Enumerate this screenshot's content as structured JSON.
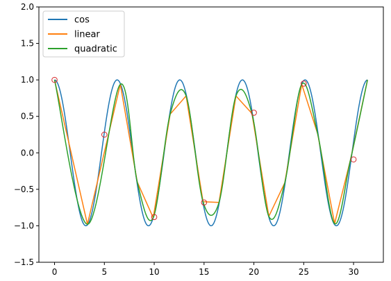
{
  "chart_data": {
    "type": "line",
    "title": "",
    "xlabel": "",
    "ylabel": "",
    "xlim": [
      -1.57,
      32.99
    ],
    "ylim": [
      -1.5,
      2.0
    ],
    "x_ticks": [
      0,
      5,
      10,
      15,
      20,
      25,
      30
    ],
    "x_tick_labels": [
      "0",
      "5",
      "10",
      "15",
      "20",
      "25",
      "30"
    ],
    "y_ticks": [
      -1.5,
      -1.0,
      -0.5,
      0.0,
      0.5,
      1.0,
      1.5,
      2.0
    ],
    "y_tick_labels": [
      "−1.5",
      "−1.0",
      "−0.5",
      "0.0",
      "0.5",
      "1.0",
      "1.5",
      "2.0"
    ],
    "grid": false,
    "legend_position": "top-left",
    "legend": [
      "cos",
      "linear",
      "quadratic"
    ],
    "series": [
      {
        "name": "cos",
        "kind": "function",
        "function": "cos",
        "x_range": [
          0,
          31.4
        ],
        "color": "#1f77b4"
      },
      {
        "name": "linear",
        "kind": "polyline",
        "color": "#ff7f0e",
        "x": [
          0,
          3.3,
          6.6,
          8.3,
          9.9,
          11.6,
          13.2,
          14.9,
          16.5,
          18.2,
          19.8,
          21.5,
          23.1,
          24.8,
          26.4,
          28.1,
          29.7,
          31.4
        ],
        "y": [
          1.0,
          -0.98,
          0.94,
          -0.4,
          -0.89,
          0.53,
          0.78,
          -0.67,
          -0.68,
          0.78,
          0.54,
          -0.87,
          -0.41,
          0.94,
          0.26,
          -0.97,
          -0.09,
          1.0
        ]
      },
      {
        "name": "quadratic",
        "kind": "smooth",
        "color": "#2ca02c",
        "x": [
          0,
          3.3,
          6.6,
          8.3,
          9.9,
          11.6,
          13.2,
          14.9,
          16.5,
          18.2,
          19.8,
          21.5,
          23.1,
          24.8,
          26.4,
          28.1,
          29.7,
          31.4
        ],
        "y": [
          1.0,
          -0.98,
          0.94,
          -0.4,
          -0.89,
          0.53,
          0.78,
          -0.67,
          -0.68,
          0.78,
          0.54,
          -0.87,
          -0.41,
          0.94,
          0.26,
          -0.97,
          -0.09,
          1.0
        ]
      }
    ],
    "markers": {
      "style": "open-circle",
      "color": "#d62728",
      "x": [
        0,
        5,
        10,
        15,
        20,
        25,
        30
      ],
      "y": [
        1.0,
        0.25,
        -0.88,
        -0.68,
        0.55,
        0.95,
        -0.09
      ]
    }
  }
}
